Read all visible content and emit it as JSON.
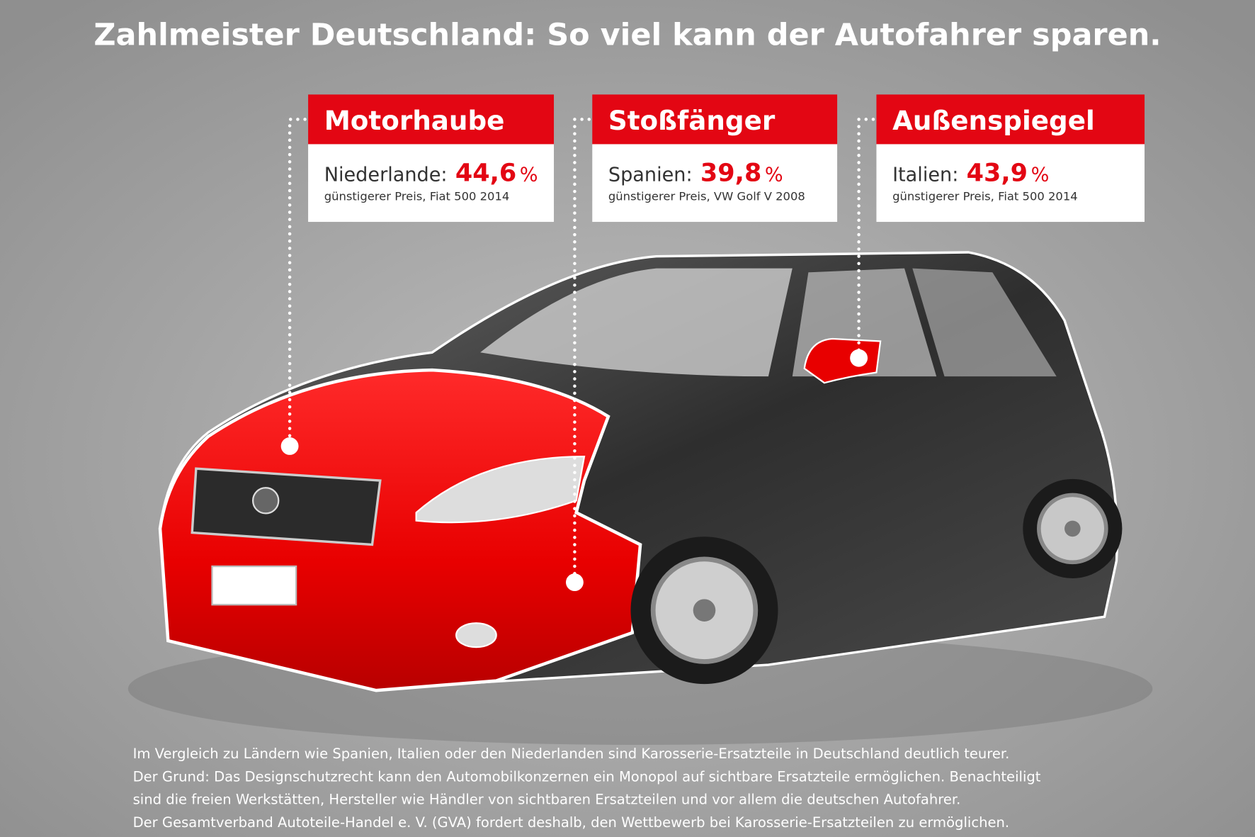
{
  "title": "Zahlmeister Deutschland: So viel kann der Autofahrer sparen.",
  "cards": [
    {
      "header": "Motorhaube",
      "country": "Niederlande:",
      "value": "44,6",
      "unit": "%",
      "note": "günstigerer Preis, Fiat 500 2014"
    },
    {
      "header": "Stoßfänger",
      "country": "Spanien:",
      "value": "39,8",
      "unit": "%",
      "note": "günstigerer Preis, VW Golf V 2008"
    },
    {
      "header": "Außenspiegel",
      "country": "Italien:",
      "value": "43,9",
      "unit": "%",
      "note": "günstigerer Preis, Fiat 500 2014"
    }
  ],
  "footer": [
    "Im Vergleich zu Ländern wie Spanien, Italien oder den Niederlanden sind Karosserie-Ersatzteile in Deutschland deutlich teurer.",
    "Der Grund: Das Designschutzrecht kann den Automobilkonzernen ein Monopol auf sichtbare Ersatzteile ermöglichen. Benachteiligt",
    "sind die freien Werkstätten, Hersteller wie Händler von sichtbaren Ersatzteilen und vor allem die deutschen Autofahrer.",
    "Der Gesamtverband Autoteile-Handel e. V. (GVA) fordert deshalb, den Wettbewerb bei Karosserie-Ersatzteilen zu ermöglichen."
  ]
}
